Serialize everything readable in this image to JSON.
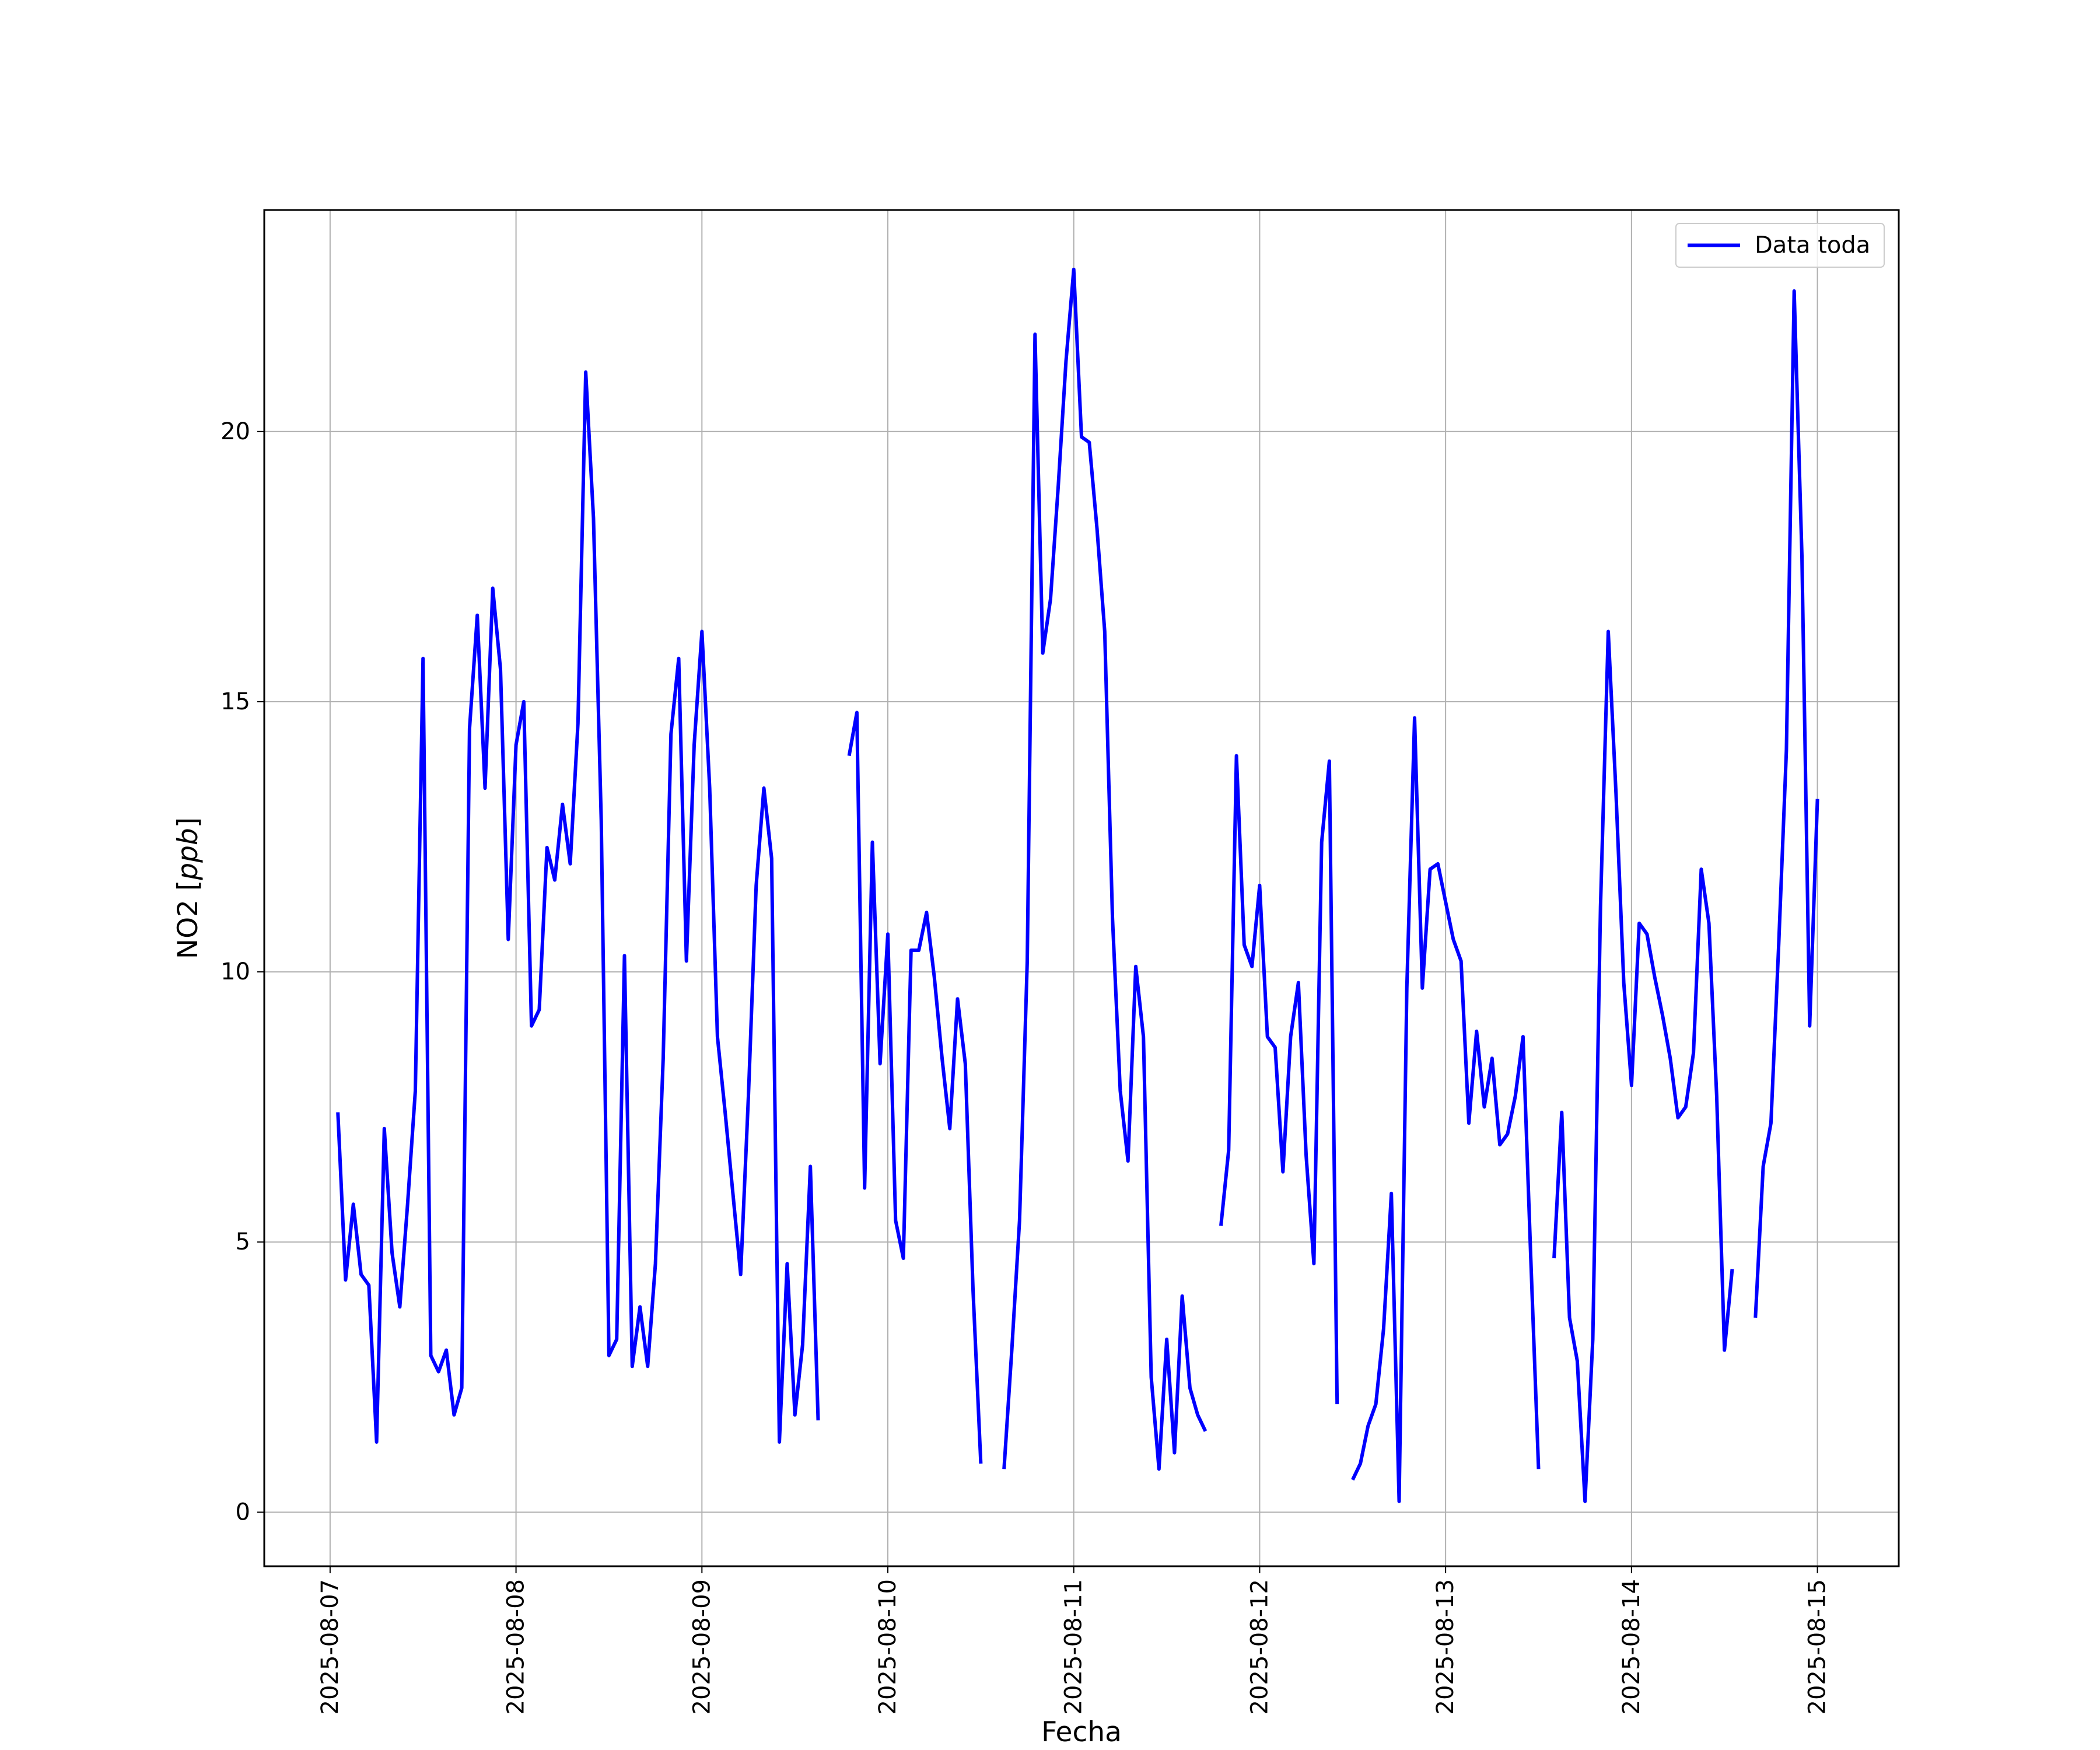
{
  "chart_data": {
    "type": "line",
    "title": "",
    "xlabel": "Fecha",
    "ylabel": "NO2 [ppb]",
    "ylabel_parts": {
      "prefix": "NO2 [",
      "unit": "ppb",
      "suffix": "]"
    },
    "xlim": [
      "2025-08-06T15:30",
      "2025-08-15T10:30"
    ],
    "ylim": [
      -1,
      24.1
    ],
    "x_ticks": [
      "2025-08-07",
      "2025-08-08",
      "2025-08-09",
      "2025-08-10",
      "2025-08-11",
      "2025-08-12",
      "2025-08-13",
      "2025-08-14",
      "2025-08-15"
    ],
    "y_ticks": [
      0,
      5,
      10,
      15,
      20
    ],
    "y_tick_labels": [
      "0",
      "5",
      "10",
      "15",
      "20"
    ],
    "grid": true,
    "legend_position": "top-right",
    "series": [
      {
        "name": "Data toda",
        "color": "#0000ff",
        "segments": [
          [
            [
              "2025-08-07T01:00",
              7.4
            ],
            [
              "2025-08-07T02:00",
              4.3
            ],
            [
              "2025-08-07T03:00",
              5.7
            ],
            [
              "2025-08-07T04:00",
              4.4
            ],
            [
              "2025-08-07T05:00",
              4.2
            ],
            [
              "2025-08-07T06:00",
              1.3
            ],
            [
              "2025-08-07T07:00",
              7.1
            ],
            [
              "2025-08-07T08:00",
              4.8
            ],
            [
              "2025-08-07T09:00",
              3.8
            ],
            [
              "2025-08-07T10:00",
              5.7
            ],
            [
              "2025-08-07T11:00",
              7.8
            ],
            [
              "2025-08-07T12:00",
              15.8
            ],
            [
              "2025-08-07T13:00",
              2.9
            ],
            [
              "2025-08-07T14:00",
              2.6
            ],
            [
              "2025-08-07T15:00",
              3.0
            ],
            [
              "2025-08-07T16:00",
              1.8
            ],
            [
              "2025-08-07T17:00",
              2.3
            ],
            [
              "2025-08-07T18:00",
              14.5
            ],
            [
              "2025-08-07T19:00",
              16.6
            ],
            [
              "2025-08-07T20:00",
              13.4
            ],
            [
              "2025-08-07T21:00",
              17.1
            ],
            [
              "2025-08-07T22:00",
              15.6
            ],
            [
              "2025-08-07T23:00",
              10.6
            ],
            [
              "2025-08-08T00:00",
              14.2
            ],
            [
              "2025-08-08T01:00",
              15.0
            ],
            [
              "2025-08-08T02:00",
              9.0
            ],
            [
              "2025-08-08T03:00",
              9.3
            ],
            [
              "2025-08-08T04:00",
              12.3
            ],
            [
              "2025-08-08T05:00",
              11.7
            ],
            [
              "2025-08-08T06:00",
              13.1
            ],
            [
              "2025-08-08T07:00",
              12.0
            ],
            [
              "2025-08-08T08:00",
              14.6
            ],
            [
              "2025-08-08T09:00",
              21.1
            ],
            [
              "2025-08-08T10:00",
              18.4
            ],
            [
              "2025-08-08T11:00",
              12.8
            ],
            [
              "2025-08-08T12:00",
              2.9
            ],
            [
              "2025-08-08T13:00",
              3.2
            ],
            [
              "2025-08-08T14:00",
              10.3
            ],
            [
              "2025-08-08T15:00",
              2.7
            ],
            [
              "2025-08-08T16:00",
              3.8
            ],
            [
              "2025-08-08T17:00",
              2.7
            ],
            [
              "2025-08-08T18:00",
              4.6
            ],
            [
              "2025-08-08T19:00",
              8.4
            ],
            [
              "2025-08-08T20:00",
              14.4
            ],
            [
              "2025-08-08T21:00",
              15.8
            ],
            [
              "2025-08-08T22:00",
              10.2
            ],
            [
              "2025-08-08T23:00",
              14.2
            ],
            [
              "2025-08-09T00:00",
              16.3
            ],
            [
              "2025-08-09T01:00",
              13.4
            ],
            [
              "2025-08-09T02:00",
              8.8
            ],
            [
              "2025-08-09T03:00",
              7.4
            ],
            [
              "2025-08-09T04:00",
              5.9
            ],
            [
              "2025-08-09T05:00",
              4.4
            ],
            [
              "2025-08-09T06:00",
              7.7
            ],
            [
              "2025-08-09T07:00",
              11.6
            ],
            [
              "2025-08-09T08:00",
              13.4
            ],
            [
              "2025-08-09T09:00",
              12.1
            ],
            [
              "2025-08-09T10:00",
              1.3
            ],
            [
              "2025-08-09T11:00",
              4.6
            ],
            [
              "2025-08-09T12:00",
              1.8
            ],
            [
              "2025-08-09T13:00",
              3.1
            ],
            [
              "2025-08-09T14:00",
              6.4
            ],
            [
              "2025-08-09T15:00",
              1.7
            ]
          ],
          [
            [
              "2025-08-09T19:00",
              14.0
            ],
            [
              "2025-08-09T20:00",
              14.8
            ],
            [
              "2025-08-09T21:00",
              6.0
            ],
            [
              "2025-08-09T22:00",
              12.4
            ],
            [
              "2025-08-09T23:00",
              8.3
            ],
            [
              "2025-08-10T00:00",
              10.7
            ],
            [
              "2025-08-10T01:00",
              5.4
            ],
            [
              "2025-08-10T02:00",
              4.7
            ],
            [
              "2025-08-10T03:00",
              10.4
            ],
            [
              "2025-08-10T04:00",
              10.4
            ],
            [
              "2025-08-10T05:00",
              11.1
            ],
            [
              "2025-08-10T06:00",
              9.9
            ],
            [
              "2025-08-10T07:00",
              8.4
            ],
            [
              "2025-08-10T08:00",
              7.1
            ],
            [
              "2025-08-10T09:00",
              9.5
            ],
            [
              "2025-08-10T10:00",
              8.3
            ],
            [
              "2025-08-10T11:00",
              4.1
            ],
            [
              "2025-08-10T12:00",
              0.9
            ]
          ],
          [
            [
              "2025-08-10T15:00",
              0.8
            ],
            [
              "2025-08-10T16:00",
              3.0
            ],
            [
              "2025-08-10T17:00",
              5.4
            ],
            [
              "2025-08-10T18:00",
              10.2
            ],
            [
              "2025-08-10T19:00",
              21.8
            ],
            [
              "2025-08-10T20:00",
              15.9
            ],
            [
              "2025-08-10T21:00",
              16.9
            ],
            [
              "2025-08-10T22:00",
              19.0
            ],
            [
              "2025-08-10T23:00",
              21.3
            ],
            [
              "2025-08-11T00:00",
              23.0
            ],
            [
              "2025-08-11T01:00",
              19.9
            ],
            [
              "2025-08-11T02:00",
              19.8
            ],
            [
              "2025-08-11T03:00",
              18.2
            ],
            [
              "2025-08-11T04:00",
              16.3
            ],
            [
              "2025-08-11T05:00",
              11.0
            ],
            [
              "2025-08-11T06:00",
              7.8
            ],
            [
              "2025-08-11T07:00",
              6.5
            ],
            [
              "2025-08-11T08:00",
              10.1
            ],
            [
              "2025-08-11T09:00",
              8.8
            ],
            [
              "2025-08-11T10:00",
              2.5
            ],
            [
              "2025-08-11T11:00",
              0.8
            ],
            [
              "2025-08-11T12:00",
              3.2
            ],
            [
              "2025-08-11T13:00",
              1.1
            ],
            [
              "2025-08-11T14:00",
              4.0
            ],
            [
              "2025-08-11T15:00",
              2.3
            ],
            [
              "2025-08-11T16:00",
              1.8
            ],
            [
              "2025-08-11T17:00",
              1.5
            ]
          ],
          [
            [
              "2025-08-11T19:00",
              5.3
            ],
            [
              "2025-08-11T20:00",
              6.7
            ],
            [
              "2025-08-11T21:00",
              14.0
            ],
            [
              "2025-08-11T22:00",
              10.5
            ],
            [
              "2025-08-11T23:00",
              10.1
            ],
            [
              "2025-08-12T00:00",
              11.6
            ],
            [
              "2025-08-12T01:00",
              8.8
            ],
            [
              "2025-08-12T02:00",
              8.6
            ],
            [
              "2025-08-12T03:00",
              6.3
            ],
            [
              "2025-08-12T04:00",
              8.8
            ],
            [
              "2025-08-12T05:00",
              9.8
            ],
            [
              "2025-08-12T06:00",
              6.6
            ],
            [
              "2025-08-12T07:00",
              4.6
            ],
            [
              "2025-08-12T08:00",
              12.4
            ],
            [
              "2025-08-12T09:00",
              13.9
            ],
            [
              "2025-08-12T10:00",
              2.0
            ]
          ],
          [
            [
              "2025-08-12T12:00",
              0.6
            ],
            [
              "2025-08-12T13:00",
              0.9
            ],
            [
              "2025-08-12T14:00",
              1.6
            ],
            [
              "2025-08-12T15:00",
              2.0
            ],
            [
              "2025-08-12T16:00",
              3.4
            ],
            [
              "2025-08-12T17:00",
              5.9
            ],
            [
              "2025-08-12T18:00",
              0.2
            ],
            [
              "2025-08-12T19:00",
              9.7
            ],
            [
              "2025-08-12T20:00",
              14.7
            ],
            [
              "2025-08-12T21:00",
              9.7
            ],
            [
              "2025-08-12T22:00",
              11.9
            ],
            [
              "2025-08-12T23:00",
              12.0
            ],
            [
              "2025-08-13T00:00",
              11.3
            ],
            [
              "2025-08-13T01:00",
              10.6
            ],
            [
              "2025-08-13T02:00",
              10.2
            ],
            [
              "2025-08-13T03:00",
              7.2
            ],
            [
              "2025-08-13T04:00",
              8.9
            ],
            [
              "2025-08-13T05:00",
              7.5
            ],
            [
              "2025-08-13T06:00",
              8.4
            ],
            [
              "2025-08-13T07:00",
              6.8
            ],
            [
              "2025-08-13T08:00",
              7.0
            ],
            [
              "2025-08-13T09:00",
              7.7
            ],
            [
              "2025-08-13T10:00",
              8.8
            ],
            [
              "2025-08-13T11:00",
              4.7
            ],
            [
              "2025-08-13T12:00",
              0.8
            ]
          ],
          [
            [
              "2025-08-13T14:00",
              4.7
            ],
            [
              "2025-08-13T15:00",
              7.4
            ],
            [
              "2025-08-13T16:00",
              3.6
            ],
            [
              "2025-08-13T17:00",
              2.8
            ],
            [
              "2025-08-13T18:00",
              0.2
            ],
            [
              "2025-08-13T19:00",
              3.2
            ],
            [
              "2025-08-13T20:00",
              11.2
            ],
            [
              "2025-08-13T21:00",
              16.3
            ],
            [
              "2025-08-13T22:00",
              13.3
            ],
            [
              "2025-08-13T23:00",
              9.8
            ],
            [
              "2025-08-14T00:00",
              7.9
            ],
            [
              "2025-08-14T01:00",
              10.9
            ],
            [
              "2025-08-14T02:00",
              10.7
            ],
            [
              "2025-08-14T03:00",
              9.9
            ],
            [
              "2025-08-14T04:00",
              9.2
            ],
            [
              "2025-08-14T05:00",
              8.4
            ],
            [
              "2025-08-14T06:00",
              7.3
            ],
            [
              "2025-08-14T07:00",
              7.5
            ],
            [
              "2025-08-14T08:00",
              8.5
            ],
            [
              "2025-08-14T09:00",
              11.9
            ],
            [
              "2025-08-14T10:00",
              10.9
            ],
            [
              "2025-08-14T11:00",
              7.7
            ],
            [
              "2025-08-14T12:00",
              3.0
            ],
            [
              "2025-08-14T13:00",
              4.5
            ]
          ],
          [
            [
              "2025-08-14T16:00",
              3.6
            ],
            [
              "2025-08-14T17:00",
              6.4
            ],
            [
              "2025-08-14T18:00",
              7.2
            ],
            [
              "2025-08-14T19:00",
              10.5
            ],
            [
              "2025-08-14T20:00",
              14.1
            ],
            [
              "2025-08-14T21:00",
              22.6
            ],
            [
              "2025-08-14T22:00",
              17.7
            ],
            [
              "2025-08-14T23:00",
              9.0
            ],
            [
              "2025-08-15T00:00",
              13.2
            ]
          ]
        ]
      }
    ]
  }
}
